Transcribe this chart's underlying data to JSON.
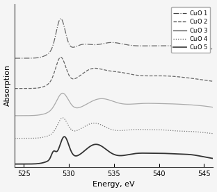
{
  "title": "",
  "xlabel": "Energy, eV",
  "ylabel": "Absorption",
  "xlim": [
    524,
    546
  ],
  "xticks": [
    525,
    530,
    535,
    540,
    545
  ],
  "legend_labels": [
    "CuO 1",
    "CuO 2",
    "CuO 3",
    "CuO 4",
    "CuO 5"
  ],
  "line_styles": [
    "-.",
    "--",
    "-",
    ":",
    "-"
  ],
  "line_colors": [
    "#666666",
    "#666666",
    "#aaaaaa",
    "#777777",
    "#333333"
  ],
  "line_widths": [
    0.9,
    0.9,
    0.9,
    0.9,
    1.3
  ],
  "offsets": [
    3.5,
    2.5,
    1.6,
    0.85,
    0.0
  ],
  "bg_color": "#f5f5f5",
  "font_size": 8
}
